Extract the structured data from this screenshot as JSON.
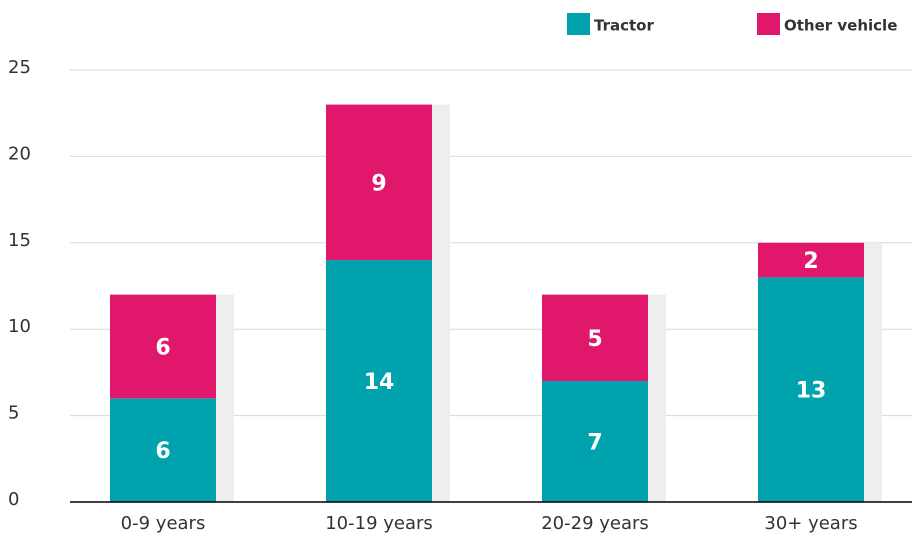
{
  "chart_data": {
    "type": "stacked_bar",
    "categories": [
      "0-9 years",
      "10-19 years",
      "20-29 years",
      "30+ years"
    ],
    "series": [
      {
        "name": "Tractor",
        "color": "#00a3ad",
        "values": [
          6,
          14,
          7,
          13
        ]
      },
      {
        "name": "Other vehicle",
        "color": "#e0176b",
        "values": [
          6,
          9,
          5,
          2
        ]
      }
    ],
    "ylim": [
      0,
      25
    ],
    "yticks": [
      0,
      5,
      10,
      15,
      20,
      25
    ],
    "grid": true,
    "legend": "top-right"
  }
}
